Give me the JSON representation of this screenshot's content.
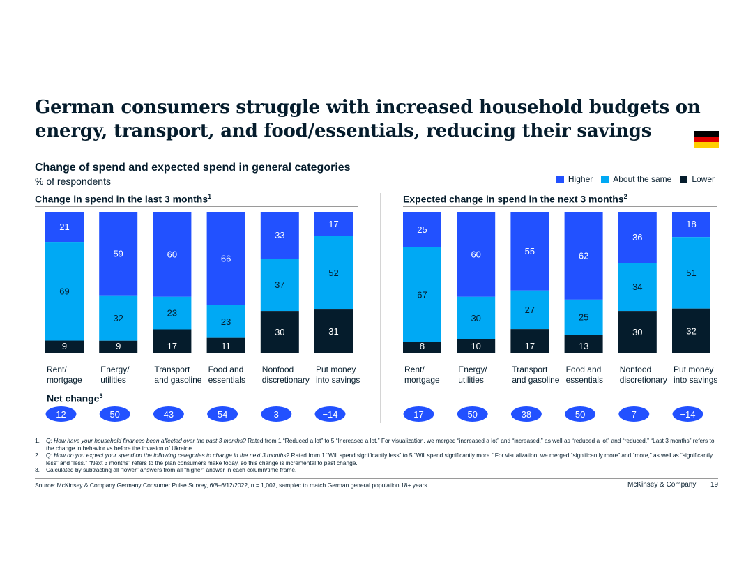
{
  "title": "German consumers struggle with increased household budgets on energy, transport, and food/essentials, reducing their savings",
  "subtitle": "Change of spend and expected spend in general categories",
  "unit": "% of respondents",
  "flag_icon": "germany-flag-icon",
  "legend": [
    {
      "label": "Higher",
      "color": "#2251ff"
    },
    {
      "label": "About the same",
      "color": "#00a9f4"
    },
    {
      "label": "Lower",
      "color": "#051c2c"
    }
  ],
  "net_label": "Net change",
  "net_sup": "3",
  "chart_data": [
    {
      "type": "stacked-bar",
      "title": "Change in spend in the last 3 months",
      "title_sup": "1",
      "categories": [
        [
          "Rent/",
          "mortgage"
        ],
        [
          "Energy/",
          "utilities"
        ],
        [
          "Transport",
          "and gasoline"
        ],
        [
          "Food and",
          "essentials"
        ],
        [
          "Nonfood",
          "discretionary"
        ],
        [
          "Put money",
          "into savings"
        ]
      ],
      "series": [
        {
          "name": "Higher",
          "values": [
            21,
            59,
            60,
            66,
            33,
            17
          ]
        },
        {
          "name": "About the same",
          "values": [
            69,
            32,
            23,
            23,
            37,
            52
          ]
        },
        {
          "name": "Lower",
          "values": [
            9,
            9,
            17,
            11,
            30,
            31
          ]
        }
      ],
      "net_change": [
        "12",
        "50",
        "43",
        "54",
        "3",
        "−14"
      ],
      "ylim": [
        0,
        100
      ]
    },
    {
      "type": "stacked-bar",
      "title": "Expected change in spend in the next 3 months",
      "title_sup": "2",
      "categories": [
        [
          "Rent/",
          "mortgage"
        ],
        [
          "Energy/",
          "utilities"
        ],
        [
          "Transport",
          "and gasoline"
        ],
        [
          "Food and",
          "essentials"
        ],
        [
          "Nonfood",
          "discretionary"
        ],
        [
          "Put money",
          "into savings"
        ]
      ],
      "series": [
        {
          "name": "Higher",
          "values": [
            25,
            60,
            55,
            62,
            36,
            18
          ]
        },
        {
          "name": "About the same",
          "values": [
            67,
            30,
            27,
            25,
            34,
            51
          ]
        },
        {
          "name": "Lower",
          "values": [
            8,
            10,
            17,
            13,
            30,
            32
          ]
        }
      ],
      "net_change": [
        "17",
        "50",
        "38",
        "50",
        "7",
        "−14"
      ],
      "ylim": [
        0,
        100
      ]
    }
  ],
  "footnotes": [
    {
      "n": "1.",
      "q": "Q: How have your household finances been affected over the past 3 months?",
      "text": " Rated from 1 “Reduced a lot” to 5 “Increased a lot.” For visualization, we merged “increased a lot” and “increased,” as well as “reduced a lot” and “reduced.” “Last 3 months” refers to the change in behavior vs before the invasion of Ukraine."
    },
    {
      "n": "2.",
      "q": "Q: How do you expect your spend on the following categories to change in the next 3 months?",
      "text": " Rated from 1 “Will spend significantly less” to 5 “Will spend significantly more.” For visualization, we merged “significantly more” and “more,” as well as “significantly less” and “less.” “Next 3 months” refers to the plan consumers make today, so this change is incremental to past change."
    },
    {
      "n": "3.",
      "q": "",
      "text": "Calculated by subtracting all “lower” answers from all “higher” answer in each column/time frame."
    }
  ],
  "source": "Source: McKinsey & Company Germany Consumer Pulse Survey, 6/8–6/12/2022, n = 1,007, sampled to match German general population 18+ years",
  "brand": "McKinsey & Company",
  "page_number": "19"
}
